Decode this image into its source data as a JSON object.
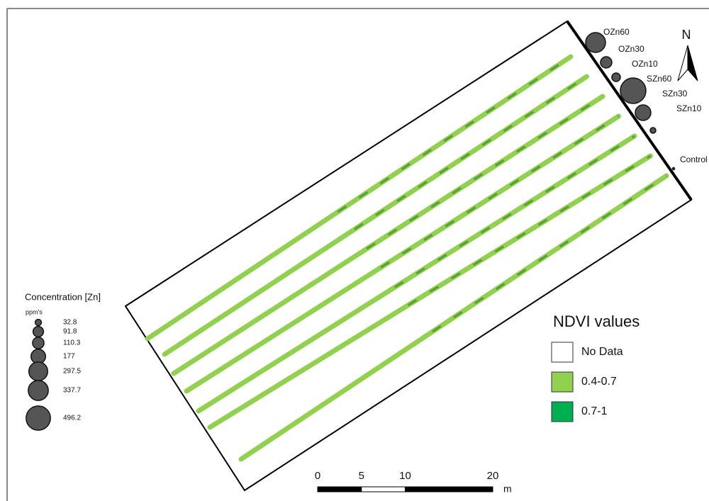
{
  "plot_labels": [
    "OZn60",
    "OZn30",
    "OZn10",
    "SZn60",
    "SZn30",
    "SZn10",
    "Control"
  ],
  "concentration_legend": {
    "title": "Concentration [Zn]",
    "unit": "ppm's",
    "values": [
      32.8,
      91.8,
      110.3,
      177.0,
      297.5,
      337.7,
      496.2
    ]
  },
  "ndvi_legend": {
    "title": "NDVI values",
    "classes": [
      {
        "label": "No Data",
        "color": "#ffffff"
      },
      {
        "label": "0.4-0.7",
        "color": "#92d050"
      },
      {
        "label": "0.7-1",
        "color": "#00b050"
      }
    ]
  },
  "north_arrow": "N",
  "scale_bar": {
    "ticks": [
      0,
      5,
      10,
      20
    ],
    "unit": "m"
  }
}
